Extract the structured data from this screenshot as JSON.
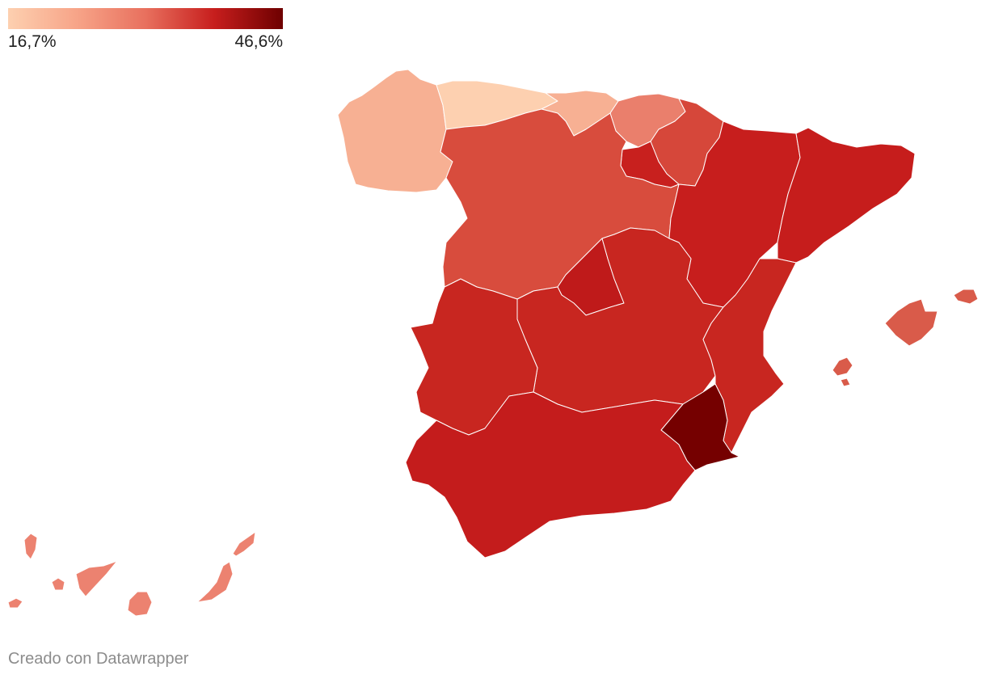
{
  "legend": {
    "min_label": "16,7%",
    "max_label": "46,6%",
    "gradient_colors": [
      "#fdd0b0",
      "#f7a488",
      "#e8705e",
      "#c71e1d",
      "#6e0000"
    ]
  },
  "regions": [
    {
      "id": "galicia",
      "color": "#f7b093"
    },
    {
      "id": "asturias",
      "color": "#fdd0b0"
    },
    {
      "id": "cantabria",
      "color": "#f7b093"
    },
    {
      "id": "pais-vasco",
      "color": "#ea7f6c"
    },
    {
      "id": "navarra",
      "color": "#d6473a"
    },
    {
      "id": "la-rioja",
      "color": "#c8201e"
    },
    {
      "id": "castilla-leon",
      "color": "#d84c3d"
    },
    {
      "id": "aragon",
      "color": "#c71e1d"
    },
    {
      "id": "cataluna",
      "color": "#c61d1c"
    },
    {
      "id": "madrid",
      "color": "#bf1a1a"
    },
    {
      "id": "castilla-la-mancha",
      "color": "#c82620"
    },
    {
      "id": "extremadura",
      "color": "#c82620"
    },
    {
      "id": "valencia",
      "color": "#c82620"
    },
    {
      "id": "murcia",
      "color": "#750000"
    },
    {
      "id": "andalucia",
      "color": "#c41c1c"
    },
    {
      "id": "baleares",
      "color": "#d95b4a"
    },
    {
      "id": "canarias",
      "color": "#ec8270"
    }
  ],
  "credit": "Creado con Datawrapper"
}
